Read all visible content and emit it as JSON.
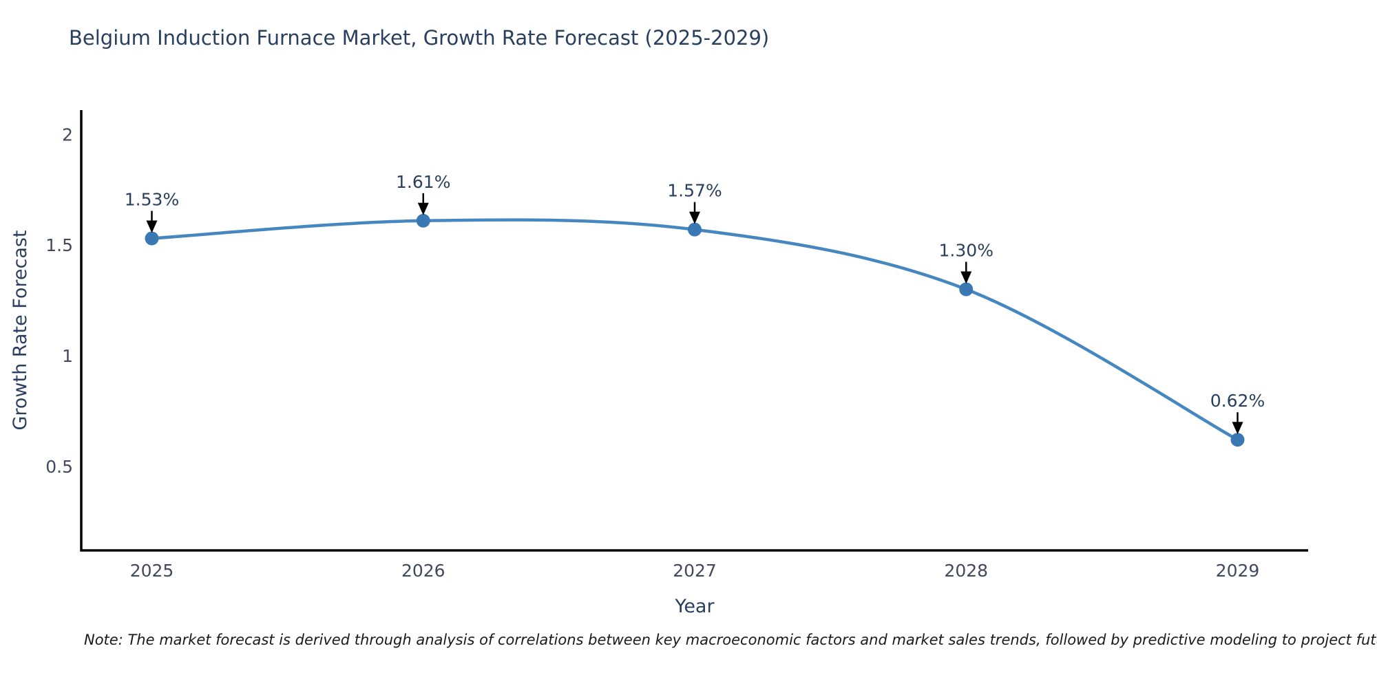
{
  "title": "Belgium Induction Furnace Market, Growth Rate Forecast (2025-2029)",
  "note": "Note: The market forecast is derived through analysis of correlations between key macroeconomic factors and market sales trends, followed by predictive modeling to project future sales",
  "colors": {
    "background": "#ffffff",
    "line": "#4787bf",
    "marker": "#3a78b4",
    "axis_line": "#000000",
    "title_text": "#2a3f5f",
    "axis_title_text": "#2a3f5f",
    "tick_text": "#42495c",
    "annotation_text": "#2a3f5f",
    "annotation_arrow": "#000000",
    "note_text": "#1a1a1a"
  },
  "chart_data": {
    "type": "line",
    "title": "Belgium Induction Furnace Market, Growth Rate Forecast (2025-2029)",
    "xlabel": "Year",
    "ylabel": "Growth Rate Forecast",
    "x": [
      2025,
      2026,
      2027,
      2028,
      2029
    ],
    "values": [
      1.53,
      1.61,
      1.57,
      1.3,
      0.62
    ],
    "point_labels": [
      "1.53%",
      "1.61%",
      "1.57%",
      "1.30%",
      "0.62%"
    ],
    "xticks": [
      "2025",
      "2026",
      "2027",
      "2028",
      "2029"
    ],
    "yticks": [
      0.5,
      1,
      1.5,
      2
    ],
    "xlim": [
      2024.74,
      2029.26
    ],
    "ylim": [
      0.12,
      2.11
    ],
    "grid": false,
    "legend": "none",
    "line_shape": "spline",
    "markers": true,
    "annotation_style": "value-label-with-down-arrow"
  }
}
